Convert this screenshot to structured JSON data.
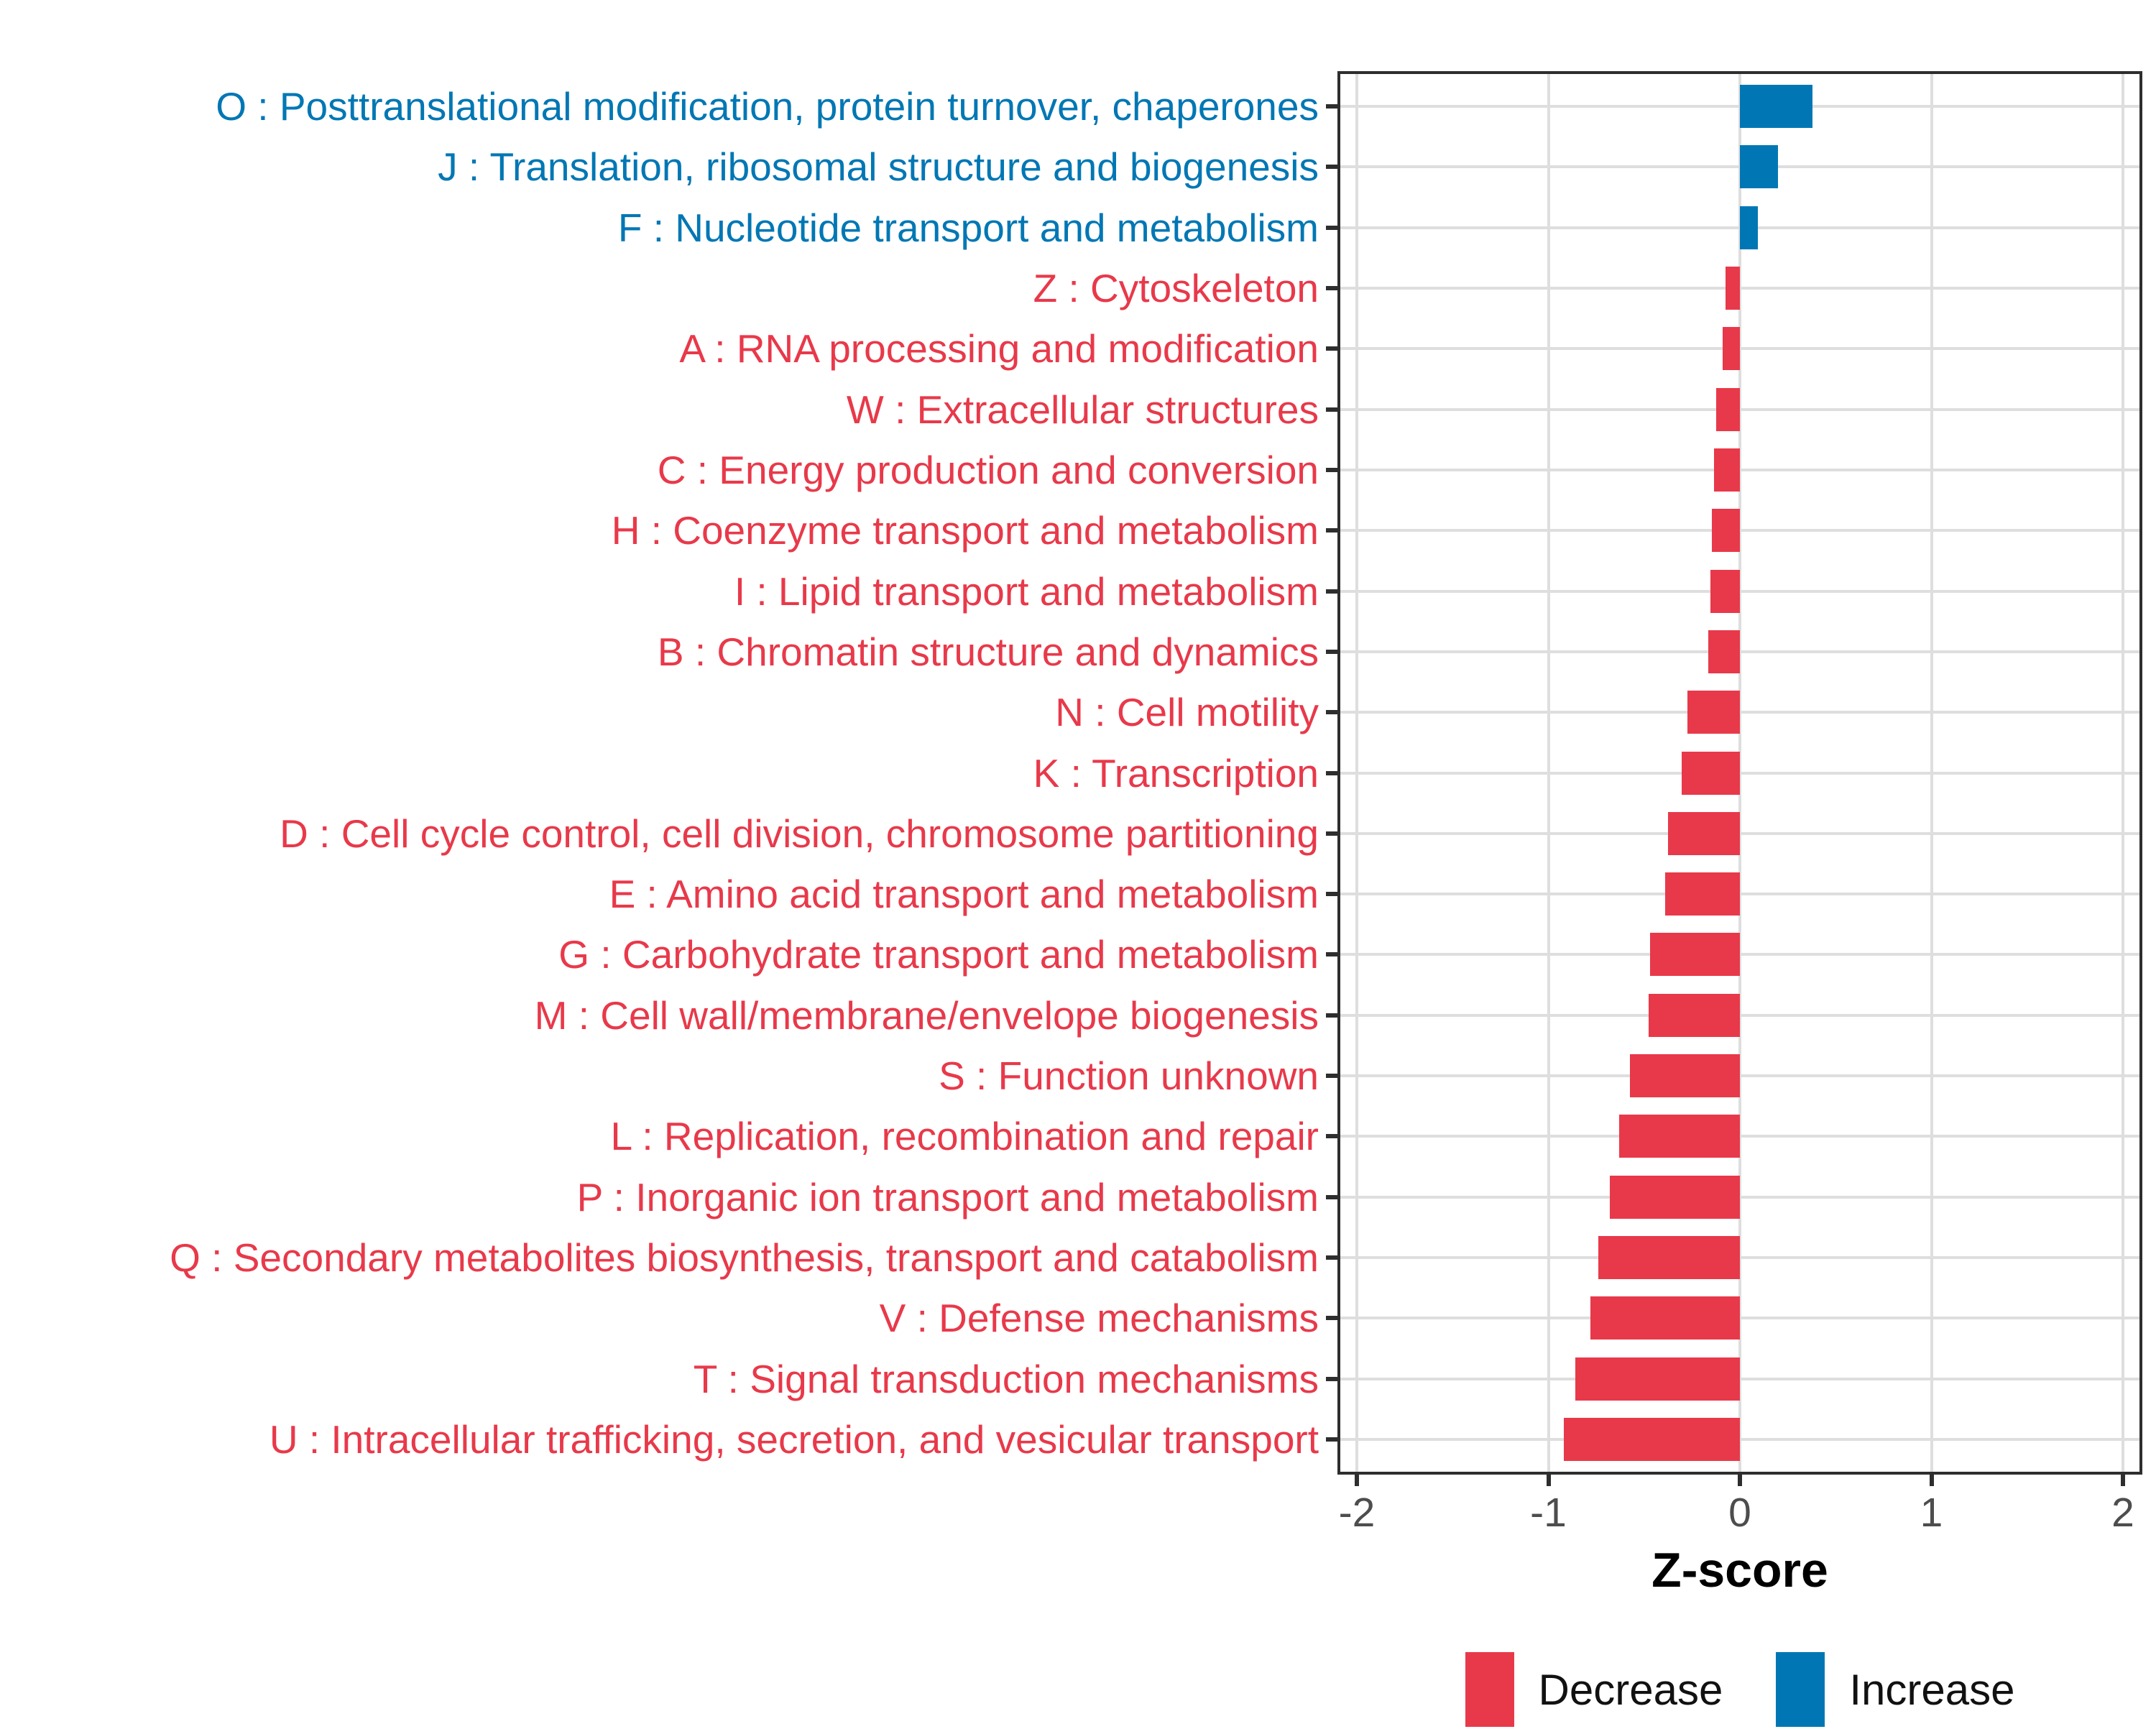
{
  "figure": {
    "xlabel": "Z-score",
    "legend": [
      {
        "label": "Decrease",
        "color": "#E8394A"
      },
      {
        "label": "Increase",
        "color": "#0077B4"
      }
    ]
  },
  "chart_data": {
    "type": "bar",
    "orientation": "horizontal",
    "title": "",
    "xlabel": "Z-score",
    "ylabel": "",
    "xlim": [
      -2.1,
      2.1
    ],
    "x_ticks": [
      -2,
      -1,
      0,
      1,
      2
    ],
    "grid": true,
    "legend_position": "bottom",
    "colors": {
      "Decrease": "#E8394A",
      "Increase": "#0077B4"
    },
    "categories": [
      "O : Posttranslational modification, protein turnover, chaperones",
      "J : Translation, ribosomal structure and biogenesis",
      "F : Nucleotide transport and metabolism",
      "Z : Cytoskeleton",
      "A : RNA processing and modification",
      "W : Extracellular structures",
      "C : Energy production and conversion",
      "H : Coenzyme transport and metabolism",
      "I : Lipid transport and metabolism",
      "B : Chromatin structure and dynamics",
      "N : Cell motility",
      "K : Transcription",
      "D : Cell cycle control, cell division, chromosome partitioning",
      "E : Amino acid transport and metabolism",
      "G : Carbohydrate transport and metabolism",
      "M : Cell wall/membrane/envelope biogenesis",
      "S : Function unknown",
      "L : Replication, recombination and repair",
      "P : Inorganic ion transport and metabolism",
      "Q : Secondary metabolites biosynthesis, transport and catabolism",
      "V : Defense mechanisms",
      "T : Signal transduction mechanisms",
      "U : Intracellular trafficking, secretion, and vesicular transport"
    ],
    "values": [
      0.38,
      0.2,
      0.095,
      -0.075,
      -0.09,
      -0.125,
      -0.135,
      -0.145,
      -0.155,
      -0.165,
      -0.275,
      -0.305,
      -0.375,
      -0.39,
      -0.47,
      -0.475,
      -0.575,
      -0.63,
      -0.68,
      -0.74,
      -0.78,
      -0.86,
      -0.92
    ],
    "groups": [
      "Increase",
      "Increase",
      "Increase",
      "Decrease",
      "Decrease",
      "Decrease",
      "Decrease",
      "Decrease",
      "Decrease",
      "Decrease",
      "Decrease",
      "Decrease",
      "Decrease",
      "Decrease",
      "Decrease",
      "Decrease",
      "Decrease",
      "Decrease",
      "Decrease",
      "Decrease",
      "Decrease",
      "Decrease",
      "Decrease"
    ]
  }
}
